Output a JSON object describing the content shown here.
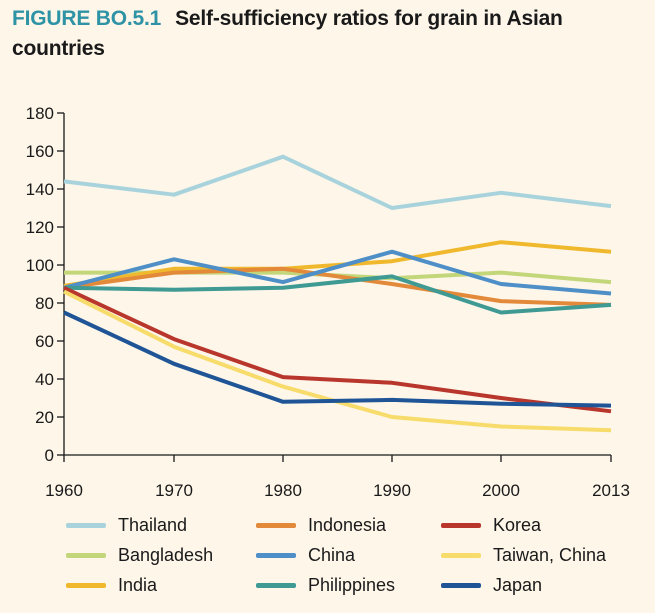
{
  "header": {
    "figure_label": "FIGURE BO.5.1",
    "title": "Self-sufficiency ratios for grain in Asian countries"
  },
  "chart_data": {
    "type": "line",
    "title": "Self-sufficiency ratios for grain in Asian countries",
    "xlabel": "",
    "ylabel": "",
    "x": [
      "1960",
      "1970",
      "1980",
      "1990",
      "2000",
      "2013"
    ],
    "ylim": [
      0,
      180
    ],
    "yticks": [
      0,
      20,
      40,
      60,
      80,
      100,
      120,
      140,
      160,
      180
    ],
    "grid": false,
    "legend_position": "bottom",
    "series": [
      {
        "name": "Thailand",
        "color": "#a9d3dc",
        "values": [
          144,
          137,
          157,
          130,
          138,
          131
        ]
      },
      {
        "name": "Bangladesh",
        "color": "#c4d67a",
        "values": [
          96,
          96,
          96,
          93,
          96,
          91
        ]
      },
      {
        "name": "India",
        "color": "#f0b82c",
        "values": [
          89,
          98,
          98,
          102,
          112,
          107
        ]
      },
      {
        "name": "Indonesia",
        "color": "#e3893a",
        "values": [
          88,
          96,
          98,
          90,
          81,
          79
        ]
      },
      {
        "name": "China",
        "color": "#4e8fc8",
        "values": [
          88,
          103,
          91,
          107,
          90,
          85
        ]
      },
      {
        "name": "Philippines",
        "color": "#3e9a93",
        "values": [
          88,
          87,
          88,
          94,
          75,
          79
        ]
      },
      {
        "name": "Korea",
        "color": "#b8362c",
        "values": [
          88,
          61,
          41,
          38,
          30,
          23
        ]
      },
      {
        "name": "Taiwan, China",
        "color": "#f7dc6b",
        "values": [
          86,
          57,
          36,
          20,
          15,
          13
        ]
      },
      {
        "name": "Japan",
        "color": "#1f5596",
        "values": [
          75,
          48,
          28,
          29,
          27,
          26
        ]
      }
    ]
  }
}
